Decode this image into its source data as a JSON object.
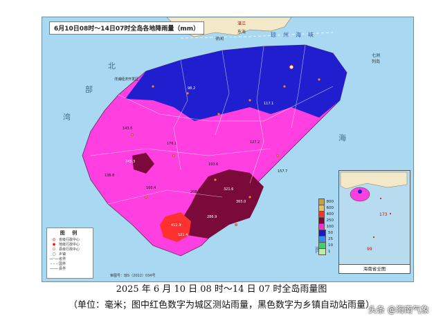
{
  "map": {
    "title": "6月10日08时～14日07时全岛各地降雨量（mm）",
    "sea_labels": [
      "北",
      "部",
      "湾",
      "南",
      "海"
    ],
    "place_labels": [
      "湛江",
      "东海",
      "徐闻",
      "洋浦经济开发区",
      "七洲列岛",
      "琼州海峡"
    ],
    "rain_values": [
      "143.5",
      "176.1",
      "193.6",
      "136.8",
      "127.2",
      "160.4",
      "208.7",
      "321.6",
      "412.3",
      "286.9",
      "521.4",
      "98.2",
      "157.7",
      "117.1",
      "245.3",
      "365.0",
      "173",
      "99"
    ],
    "reviewer_text": "审图号：琼S（2022）034号"
  },
  "legend": {
    "title": "图 例",
    "items": [
      {
        "symbol": "◎",
        "label": "省级行政中心"
      },
      {
        "symbol": "◉",
        "label": "地级行政中心"
      },
      {
        "symbol": "⊙",
        "label": "县级行政中心"
      },
      {
        "symbol": "○",
        "label": "乡镇"
      },
      {
        "symbol": "—·—",
        "label": "省界"
      },
      {
        "symbol": "- - -",
        "label": "国界"
      },
      {
        "symbol": "——",
        "label": "县界"
      }
    ]
  },
  "color_scale": [
    {
      "label": "800",
      "color": "#c8a03c"
    },
    {
      "label": "600",
      "color": "#e8c060"
    },
    {
      "label": "400",
      "color": "#ff3030"
    },
    {
      "label": "250",
      "color": "#7a0a3a"
    },
    {
      "label": "100",
      "color": "#ff2fd6"
    },
    {
      "label": "50",
      "color": "#1a18c8"
    },
    {
      "label": "25",
      "color": "#2f8ff0"
    },
    {
      "label": "10",
      "color": "#3fcf6f"
    },
    {
      "label": "1",
      "color": "#b8f0a0"
    }
  ],
  "inset": {
    "label": "海南省全图"
  },
  "caption": {
    "line1": "2025 年 6 月 10 日 08 时～14 日 07 时全岛雨量图",
    "line2": "（单位：毫米；图中红色数字为城区测站雨量，黑色数字为乡镇自动站雨量）"
  },
  "watermark": "头条 @海南气象"
}
